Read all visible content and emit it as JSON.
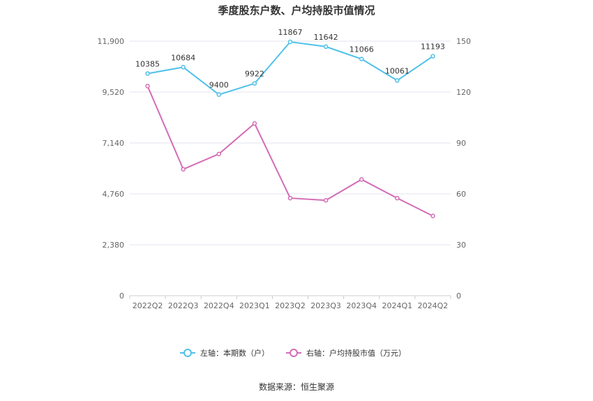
{
  "chart_data": {
    "type": "line",
    "title": "季度股东户数、户均持股市值情况",
    "categories": [
      "2022Q2",
      "2022Q3",
      "2022Q4",
      "2023Q1",
      "2023Q2",
      "2023Q3",
      "2023Q4",
      "2024Q1",
      "2024Q2"
    ],
    "series": [
      {
        "name": "左轴：本期数（户）",
        "axis": "left",
        "color": "#4fc1e9",
        "values": [
          10385,
          10684,
          9400,
          9922,
          11867,
          11642,
          11066,
          10061,
          11193
        ],
        "labels": [
          "10385",
          "10684",
          "9400",
          "9922",
          "11867",
          "11642",
          "11066",
          "10061",
          "11193"
        ]
      },
      {
        "name": "右轴：户均持股市值（万元）",
        "axis": "right",
        "color": "#d36cb6",
        "values": [
          123.5,
          74.5,
          83.5,
          101.5,
          57.5,
          56.2,
          68.5,
          57.5,
          47.0
        ]
      }
    ],
    "y_left": {
      "range": [
        0,
        11900
      ],
      "ticks": [
        "0",
        "2,380",
        "4,760",
        "7,140",
        "9,520",
        "11,900"
      ],
      "tick_values": [
        0,
        2380,
        4760,
        7140,
        9520,
        11900
      ]
    },
    "y_right": {
      "range": [
        0,
        150
      ],
      "ticks": [
        "0",
        "30",
        "60",
        "90",
        "120",
        "150"
      ],
      "tick_values": [
        0,
        30,
        60,
        90,
        120,
        150
      ]
    },
    "grid": true,
    "legend_position": "bottom"
  },
  "source": "数据来源：恒生聚源"
}
